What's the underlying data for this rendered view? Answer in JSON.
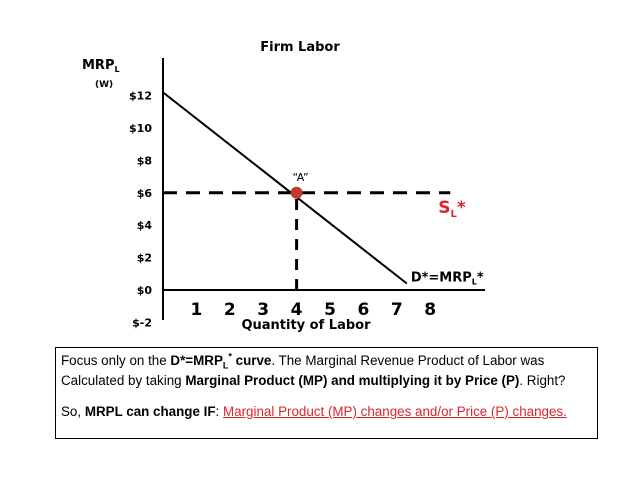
{
  "chart_data": {
    "type": "line",
    "title": "Firm Labor",
    "ylabel": "MRP",
    "ylabel_sub": "L",
    "ylabel_unit": "(W)",
    "xlabel": "Quantity of Labor",
    "xlim": [
      0,
      8.8
    ],
    "ylim": [
      -2,
      13.5
    ],
    "x_ticks": [
      {
        "value": 1,
        "label": "1"
      },
      {
        "value": 2,
        "label": "2"
      },
      {
        "value": 3,
        "label": "3"
      },
      {
        "value": 4,
        "label": "4"
      },
      {
        "value": 5,
        "label": "5"
      },
      {
        "value": 6,
        "label": "6"
      },
      {
        "value": 7,
        "label": "7"
      },
      {
        "value": 8,
        "label": "8"
      }
    ],
    "y_ticks": [
      {
        "value": 12,
        "label": "$12"
      },
      {
        "value": 10,
        "label": "$10"
      },
      {
        "value": 8,
        "label": "$8"
      },
      {
        "value": 6,
        "label": "$6"
      },
      {
        "value": 4,
        "label": "$4"
      },
      {
        "value": 2,
        "label": "$2"
      },
      {
        "value": 0,
        "label": "$0"
      },
      {
        "value": -2,
        "label": "$-2"
      }
    ],
    "series": [
      {
        "name": "D*=MRP",
        "name_sub": "L",
        "name_suffix": "*",
        "x": [
          0,
          7.3
        ],
        "y": [
          12.2,
          0.4
        ],
        "color": "#000000"
      },
      {
        "name": "S",
        "name_sub": "L",
        "name_suffix": "*",
        "x": [
          0,
          8.6
        ],
        "y": [
          6,
          6
        ],
        "color": "#000000",
        "dashed": true
      }
    ],
    "guide_line": {
      "x": 4,
      "y_from": 0,
      "y_to": 6,
      "dashed": true
    },
    "point": {
      "label": "“A”",
      "x": 4,
      "y": 6,
      "color": "#c0392b"
    },
    "supply_label_color": "#d9262e"
  },
  "note": {
    "line1_a": "Focus only on the ",
    "line1_b": "D*=MRP",
    "line1_b_sub": "L",
    "line1_b_sup": "*",
    "line1_b_end": " curve",
    "line1_c": ". The Marginal Revenue Product of Labor was",
    "line2_a": "Calculated by taking ",
    "line2_b": "Marginal Product (MP) and multiplying it by Price (P)",
    "line2_c": ". Right?",
    "line3_a": "So, ",
    "line3_b": "MRPL can change IF",
    "line3_c": ":  ",
    "line3_d": "Marginal Product (MP) changes and/or Price (P) changes."
  }
}
